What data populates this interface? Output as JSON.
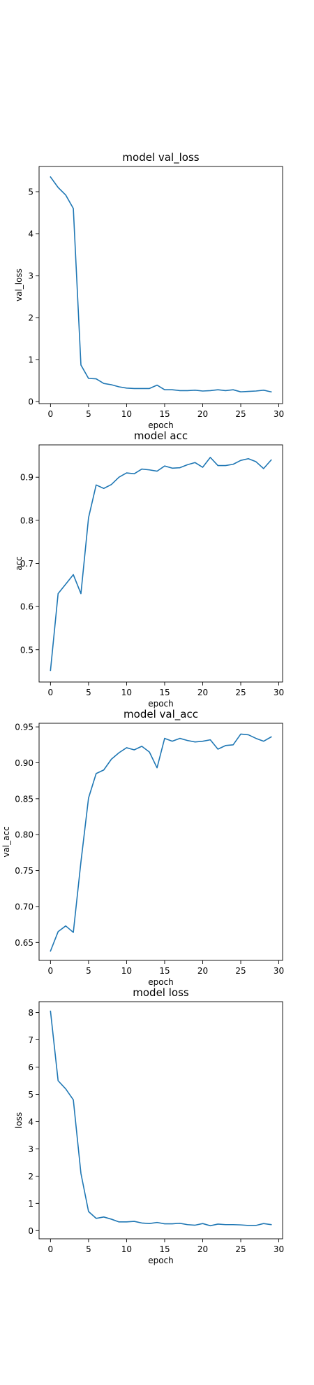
{
  "chart_data": [
    {
      "type": "line",
      "title": "model val_loss",
      "xlabel": "epoch",
      "ylabel": "val_loss",
      "xlim": [
        -1.5,
        30.5
      ],
      "ylim": [
        -0.05,
        5.6
      ],
      "xticks": [
        0,
        5,
        10,
        15,
        20,
        25,
        30
      ],
      "yticks": [
        0,
        1,
        2,
        3,
        4,
        5
      ],
      "grid": false,
      "color": "#1f77b4",
      "series": [
        {
          "x": [
            0,
            1,
            2,
            3,
            4,
            5,
            6,
            7,
            8,
            9,
            10,
            11,
            12,
            13,
            14,
            15,
            16,
            17,
            18,
            19,
            20,
            21,
            22,
            23,
            24,
            25,
            26,
            27,
            28,
            29
          ],
          "values": [
            5.35,
            5.1,
            4.92,
            4.6,
            0.87,
            0.55,
            0.54,
            0.43,
            0.4,
            0.35,
            0.32,
            0.31,
            0.31,
            0.31,
            0.39,
            0.28,
            0.28,
            0.26,
            0.26,
            0.27,
            0.25,
            0.26,
            0.28,
            0.26,
            0.28,
            0.23,
            0.24,
            0.25,
            0.27,
            0.23
          ]
        }
      ]
    },
    {
      "type": "line",
      "title": "model acc",
      "xlabel": "epoch",
      "ylabel": "acc",
      "xlim": [
        -1.5,
        30.5
      ],
      "ylim": [
        0.425,
        0.975
      ],
      "xticks": [
        0,
        5,
        10,
        15,
        20,
        25,
        30
      ],
      "yticks": [
        0.5,
        0.6,
        0.7,
        0.8,
        0.9
      ],
      "grid": false,
      "color": "#1f77b4",
      "series": [
        {
          "x": [
            0,
            1,
            2,
            3,
            4,
            5,
            6,
            7,
            8,
            9,
            10,
            11,
            12,
            13,
            14,
            15,
            16,
            17,
            18,
            19,
            20,
            21,
            22,
            23,
            24,
            25,
            26,
            27,
            28,
            29
          ],
          "values": [
            0.452,
            0.63,
            0.652,
            0.674,
            0.63,
            0.806,
            0.882,
            0.874,
            0.883,
            0.9,
            0.91,
            0.908,
            0.919,
            0.917,
            0.914,
            0.926,
            0.921,
            0.922,
            0.929,
            0.934,
            0.923,
            0.946,
            0.927,
            0.927,
            0.93,
            0.939,
            0.943,
            0.936,
            0.92,
            0.94
          ]
        }
      ]
    },
    {
      "type": "line",
      "title": "model val_acc",
      "xlabel": "epoch",
      "ylabel": "val_acc",
      "xlim": [
        -1.5,
        30.5
      ],
      "ylim": [
        0.625,
        0.955
      ],
      "xticks": [
        0,
        5,
        10,
        15,
        20,
        25,
        30
      ],
      "yticks": [
        0.65,
        0.7,
        0.75,
        0.8,
        0.85,
        0.9,
        0.95
      ],
      "grid": false,
      "color": "#1f77b4",
      "series": [
        {
          "x": [
            0,
            1,
            2,
            3,
            4,
            5,
            6,
            7,
            8,
            9,
            10,
            11,
            12,
            13,
            14,
            15,
            16,
            17,
            18,
            19,
            20,
            21,
            22,
            23,
            24,
            25,
            26,
            27,
            28,
            29
          ],
          "values": [
            0.638,
            0.665,
            0.673,
            0.664,
            0.762,
            0.851,
            0.885,
            0.89,
            0.905,
            0.914,
            0.921,
            0.918,
            0.923,
            0.915,
            0.893,
            0.934,
            0.93,
            0.934,
            0.931,
            0.929,
            0.93,
            0.932,
            0.919,
            0.924,
            0.925,
            0.94,
            0.939,
            0.934,
            0.93,
            0.936
          ]
        }
      ]
    },
    {
      "type": "line",
      "title": "model loss",
      "xlabel": "epoch",
      "ylabel": "loss",
      "xlim": [
        -1.5,
        30.5
      ],
      "ylim": [
        -0.3,
        8.4
      ],
      "xticks": [
        0,
        5,
        10,
        15,
        20,
        25,
        30
      ],
      "yticks": [
        0,
        1,
        2,
        3,
        4,
        5,
        6,
        7,
        8
      ],
      "grid": false,
      "color": "#1f77b4",
      "series": [
        {
          "x": [
            0,
            1,
            2,
            3,
            4,
            5,
            6,
            7,
            8,
            9,
            10,
            11,
            12,
            13,
            14,
            15,
            16,
            17,
            18,
            19,
            20,
            21,
            22,
            23,
            24,
            25,
            26,
            27,
            28,
            29
          ],
          "values": [
            8.05,
            5.5,
            5.2,
            4.8,
            2.1,
            0.7,
            0.45,
            0.5,
            0.42,
            0.32,
            0.32,
            0.34,
            0.28,
            0.26,
            0.3,
            0.25,
            0.25,
            0.27,
            0.22,
            0.2,
            0.26,
            0.18,
            0.24,
            0.22,
            0.22,
            0.21,
            0.19,
            0.19,
            0.26,
            0.22
          ]
        }
      ]
    }
  ]
}
